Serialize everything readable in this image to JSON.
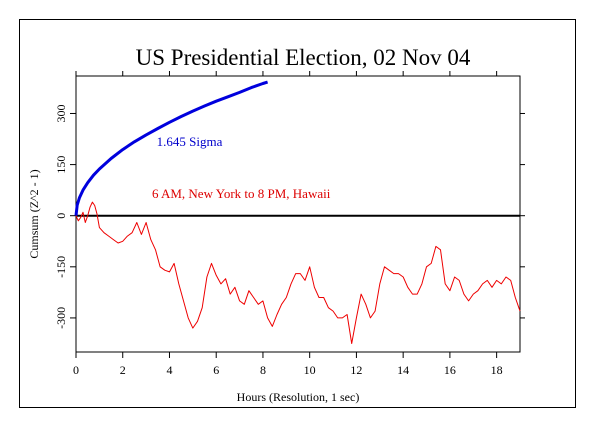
{
  "chart_data": {
    "type": "line",
    "title": "US Presidential Election, 02 Nov 04",
    "xlabel": "Hours (Resolution, 1 sec)",
    "ylabel": "Cumsum (Z^2 - 1)",
    "xlim": [
      0,
      19
    ],
    "ylim": [
      -400,
      410
    ],
    "x_ticks": [
      "0",
      "2",
      "4",
      "6",
      "8",
      "10",
      "12",
      "14",
      "16",
      "18"
    ],
    "x_tick_values": [
      0,
      2,
      4,
      6,
      8,
      10,
      12,
      14,
      16,
      18
    ],
    "y_ticks": [
      "-300",
      "-150",
      "0",
      "150",
      "300"
    ],
    "y_tick_values": [
      -300,
      -150,
      0,
      150,
      300
    ],
    "grid": false,
    "annotations": [
      {
        "text": "1.645 Sigma",
        "color": "#0000cc",
        "x": 3.45,
        "y": 205
      },
      {
        "text": "6 AM, New York to 8 PM, Hawaii",
        "color": "#dd0000",
        "x": 3.25,
        "y": 52
      }
    ],
    "series": [
      {
        "name": "1.645 Sigma",
        "color": "#0000dd",
        "x": [
          0,
          0.05,
          0.15,
          0.3,
          0.5,
          0.75,
          1,
          1.5,
          2,
          2.5,
          3,
          3.5,
          4,
          4.5,
          5,
          5.5,
          6,
          6.5,
          7,
          7.5,
          8,
          8.2
        ],
        "y": [
          0,
          31,
          53,
          75,
          97,
          119,
          137,
          168,
          194,
          217,
          237,
          256,
          274,
          291,
          307,
          322,
          336,
          349,
          362,
          376,
          388,
          392
        ]
      },
      {
        "color": "#ee0000",
        "x": [
          0,
          0.1,
          0.2,
          0.3,
          0.4,
          0.5,
          0.6,
          0.7,
          0.8,
          0.9,
          1.0,
          1.2,
          1.4,
          1.6,
          1.8,
          2.0,
          2.2,
          2.4,
          2.6,
          2.8,
          3.0,
          3.2,
          3.4,
          3.6,
          3.8,
          4.0,
          4.2,
          4.4,
          4.6,
          4.8,
          5.0,
          5.2,
          5.4,
          5.6,
          5.8,
          6.0,
          6.2,
          6.4,
          6.6,
          6.8,
          7.0,
          7.2,
          7.4,
          7.6,
          7.8,
          8.0,
          8.2,
          8.4,
          8.6,
          8.8,
          9.0,
          9.2,
          9.4,
          9.6,
          9.8,
          10.0,
          10.2,
          10.4,
          10.6,
          10.8,
          11.0,
          11.2,
          11.4,
          11.6,
          11.8,
          12.0,
          12.2,
          12.4,
          12.6,
          12.8,
          13.0,
          13.2,
          13.4,
          13.6,
          13.8,
          14.0,
          14.2,
          14.4,
          14.6,
          14.8,
          15.0,
          15.2,
          15.4,
          15.6,
          15.8,
          16.0,
          16.2,
          16.4,
          16.6,
          16.8,
          17.0,
          17.2,
          17.4,
          17.6,
          17.8,
          18.0,
          18.2,
          18.4,
          18.6,
          18.8,
          19.0
        ],
        "y": [
          0,
          -15,
          -5,
          10,
          -20,
          0,
          25,
          40,
          30,
          5,
          -35,
          -50,
          -60,
          -70,
          -80,
          -75,
          -60,
          -50,
          -20,
          -55,
          -20,
          -70,
          -100,
          -150,
          -160,
          -165,
          -140,
          -200,
          -250,
          -300,
          -330,
          -310,
          -270,
          -180,
          -140,
          -175,
          -200,
          -185,
          -230,
          -210,
          -250,
          -260,
          -220,
          -240,
          -260,
          -250,
          -300,
          -325,
          -290,
          -260,
          -240,
          -200,
          -170,
          -170,
          -190,
          -150,
          -210,
          -240,
          -240,
          -270,
          -280,
          -300,
          -300,
          -290,
          -375,
          -300,
          -230,
          -260,
          -300,
          -280,
          -200,
          -150,
          -160,
          -170,
          -170,
          -180,
          -210,
          -230,
          -230,
          -200,
          -150,
          -140,
          -90,
          -100,
          -200,
          -220,
          -180,
          -190,
          -230,
          -250,
          -230,
          -220,
          -200,
          -190,
          -210,
          -190,
          -200,
          -180,
          -190,
          -240,
          -280
        ]
      }
    ]
  }
}
